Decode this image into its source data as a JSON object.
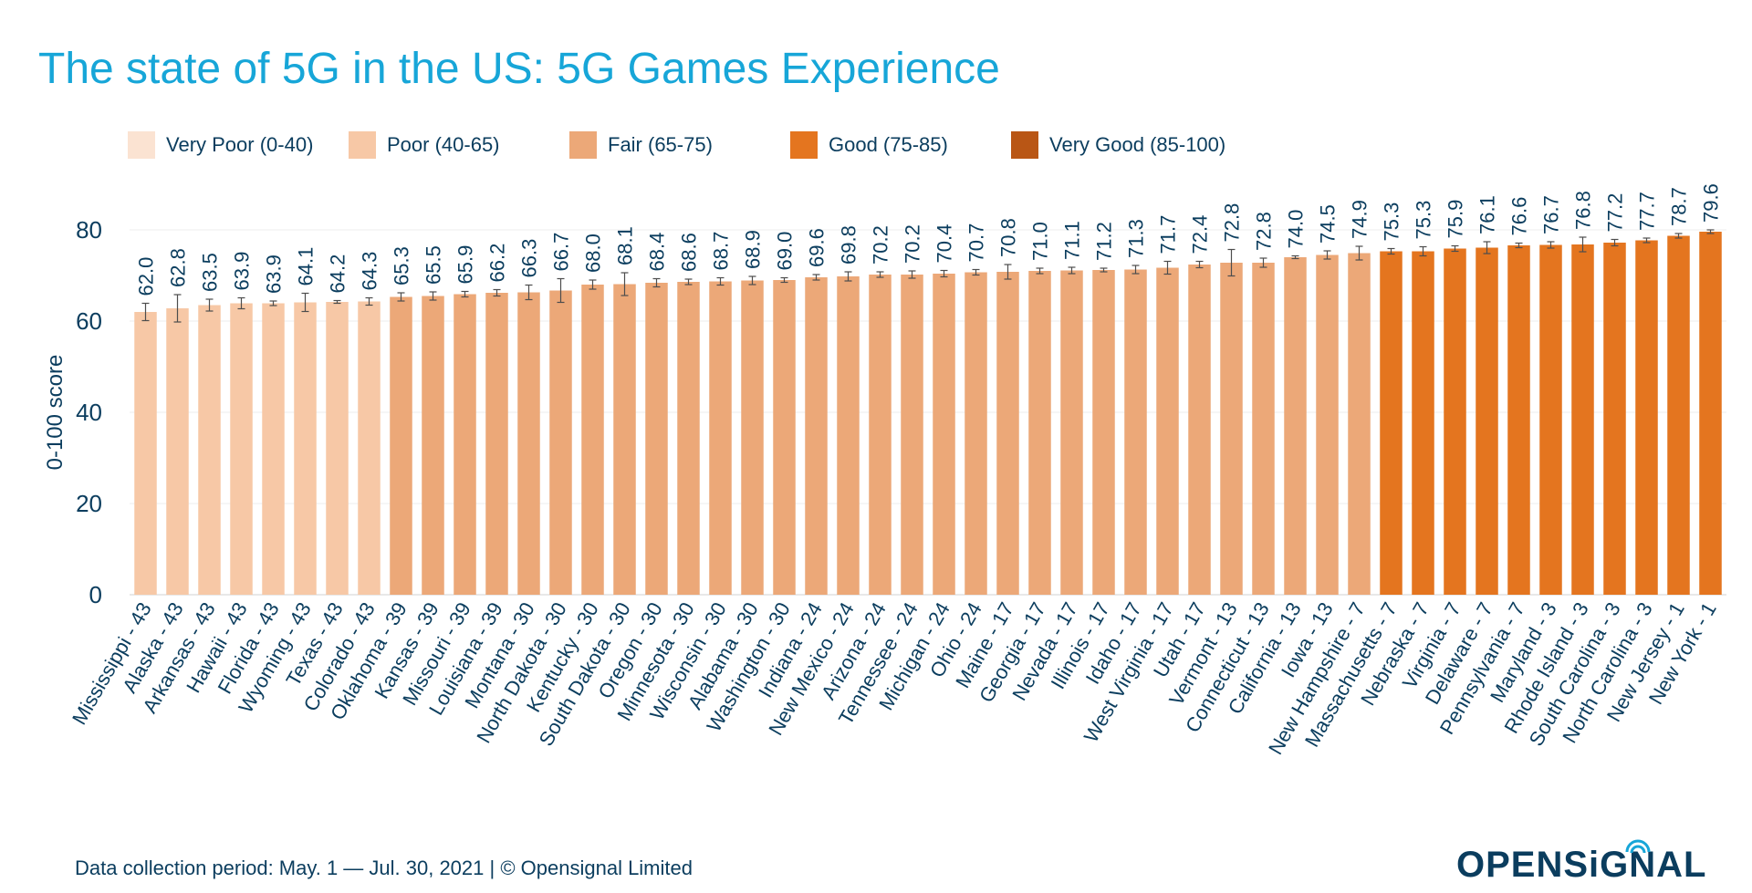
{
  "title": "The state of 5G in the US: 5G Games Experience",
  "legend": [
    {
      "label": "Very Poor (0-40)",
      "color": "#fbe3d2"
    },
    {
      "label": "Poor (40-65)",
      "color": "#f7c8a6"
    },
    {
      "label": "Fair (65-75)",
      "color": "#eca878"
    },
    {
      "label": "Good (75-85)",
      "color": "#e4751f"
    },
    {
      "label": "Very Good (85-100)",
      "color": "#b95615"
    }
  ],
  "footer": "Data collection period: May. 1 — Jul. 30, 2021 | © Opensignal Limited",
  "logo": "OPENSiGNAL",
  "chart_data": {
    "type": "bar",
    "title": "The state of 5G in the US: 5G Games Experience",
    "ylabel": "0-100 score",
    "xlabel": "",
    "ylim": [
      0,
      80
    ],
    "yticks": [
      0,
      20,
      40,
      60,
      80
    ],
    "grid": true,
    "legend_position": "top",
    "categories": [
      "Mississippi - 43",
      "Alaska - 43",
      "Arkansas - 43",
      "Hawaii - 43",
      "Florida - 43",
      "Wyoming - 43",
      "Texas - 43",
      "Colorado - 43",
      "Oklahoma - 39",
      "Kansas - 39",
      "Missouri - 39",
      "Louisiana - 39",
      "Montana - 30",
      "North Dakota - 30",
      "Kentucky - 30",
      "South Dakota - 30",
      "Oregon - 30",
      "Minnesota - 30",
      "Wisconsin - 30",
      "Alabama - 30",
      "Washington - 30",
      "Indiana - 24",
      "New Mexico - 24",
      "Arizona - 24",
      "Tennessee - 24",
      "Michigan - 24",
      "Ohio - 24",
      "Maine - 17",
      "Georgia - 17",
      "Nevada - 17",
      "Illinois - 17",
      "Idaho - 17",
      "West Virginia - 17",
      "Utah - 17",
      "Vermont - 13",
      "Connecticut - 13",
      "California - 13",
      "Iowa - 13",
      "New Hampshire - 7",
      "Massachusetts - 7",
      "Nebraska - 7",
      "Virginia - 7",
      "Delaware - 7",
      "Pennsylvania - 7",
      "Maryland - 3",
      "Rhode Island - 3",
      "South Carolina - 3",
      "North Carolina - 3",
      "New Jersey - 1",
      "New York - 1"
    ],
    "values": [
      62.0,
      62.8,
      63.5,
      63.9,
      63.9,
      64.1,
      64.2,
      64.3,
      65.3,
      65.5,
      65.9,
      66.2,
      66.3,
      66.7,
      68.0,
      68.1,
      68.4,
      68.6,
      68.7,
      68.9,
      69.0,
      69.6,
      69.8,
      70.2,
      70.2,
      70.4,
      70.7,
      70.8,
      71.0,
      71.1,
      71.2,
      71.3,
      71.7,
      72.4,
      72.8,
      72.8,
      74.0,
      74.5,
      74.9,
      75.3,
      75.3,
      75.9,
      76.1,
      76.6,
      76.7,
      76.8,
      77.2,
      77.7,
      78.7,
      79.6
    ],
    "value_labels": [
      "62.0",
      "62.8",
      "63.5",
      "63.9",
      "63.9",
      "64.1",
      "64.2",
      "64.3",
      "65.3",
      "65.5",
      "65.9",
      "66.2",
      "66.3",
      "66.7",
      "68.0",
      "68.1",
      "68.4",
      "68.6",
      "68.7",
      "68.9",
      "69.0",
      "69.6",
      "69.8",
      "70.2",
      "70.2",
      "70.4",
      "70.7",
      "70.8",
      "71.0",
      "71.1",
      "71.2",
      "71.3",
      "71.7",
      "72.4",
      "72.8",
      "72.8",
      "74.0",
      "74.5",
      "74.9",
      "75.3",
      "75.3",
      "75.9",
      "76.1",
      "76.6",
      "76.7",
      "76.8",
      "77.2",
      "77.7",
      "78.7",
      "79.6"
    ],
    "error_bars": [
      [
        60.1,
        63.9
      ],
      [
        59.8,
        65.8
      ],
      [
        62.2,
        64.8
      ],
      [
        62.7,
        65.1
      ],
      [
        63.4,
        64.4
      ],
      [
        62.1,
        66.1
      ],
      [
        63.9,
        64.5
      ],
      [
        63.5,
        65.1
      ],
      [
        64.4,
        66.2
      ],
      [
        64.6,
        66.4
      ],
      [
        65.3,
        66.5
      ],
      [
        65.5,
        66.9
      ],
      [
        64.7,
        67.9
      ],
      [
        64.1,
        69.3
      ],
      [
        67.0,
        69.0
      ],
      [
        65.6,
        70.6
      ],
      [
        67.5,
        69.3
      ],
      [
        68.0,
        69.2
      ],
      [
        67.9,
        69.5
      ],
      [
        68.0,
        69.8
      ],
      [
        68.5,
        69.5
      ],
      [
        69.0,
        70.2
      ],
      [
        68.8,
        70.8
      ],
      [
        69.6,
        70.8
      ],
      [
        69.4,
        71.0
      ],
      [
        69.7,
        71.1
      ],
      [
        70.1,
        71.3
      ],
      [
        69.2,
        72.4
      ],
      [
        70.4,
        71.6
      ],
      [
        70.4,
        71.8
      ],
      [
        70.8,
        71.6
      ],
      [
        70.4,
        72.2
      ],
      [
        70.3,
        73.1
      ],
      [
        71.7,
        73.1
      ],
      [
        69.9,
        75.7
      ],
      [
        71.8,
        73.8
      ],
      [
        73.7,
        74.3
      ],
      [
        73.6,
        75.4
      ],
      [
        73.4,
        76.4
      ],
      [
        74.7,
        75.9
      ],
      [
        74.3,
        76.3
      ],
      [
        75.3,
        76.5
      ],
      [
        74.8,
        77.4
      ],
      [
        76.1,
        77.1
      ],
      [
        76.0,
        77.4
      ],
      [
        75.2,
        78.4
      ],
      [
        76.5,
        77.9
      ],
      [
        77.2,
        78.2
      ],
      [
        78.2,
        79.2
      ],
      [
        79.2,
        80.0
      ]
    ],
    "categories_color": [
      "Poor (40-65)",
      "Fair (65-75)",
      "Good (75-85)"
    ]
  }
}
